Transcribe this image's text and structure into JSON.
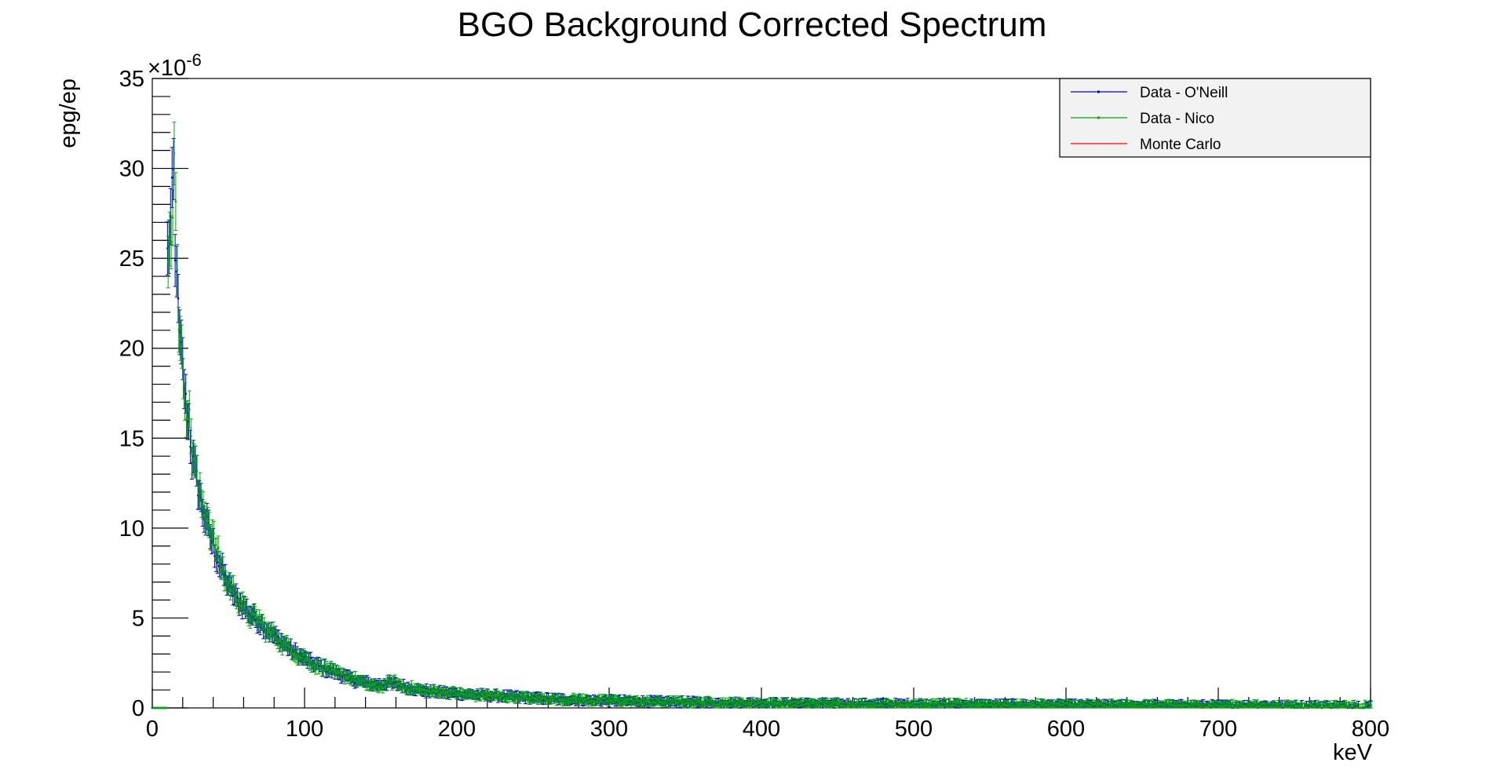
{
  "chart_data": {
    "type": "scatter",
    "title": "BGO Background Corrected Spectrum",
    "xlabel": "keV",
    "ylabel": "epg/ep",
    "y_multiplier_label": "×10",
    "y_multiplier_exponent": "-6",
    "xlim": [
      0,
      800
    ],
    "ylim": [
      0,
      35
    ],
    "x_ticks": [
      0,
      100,
      200,
      300,
      400,
      500,
      600,
      700,
      800
    ],
    "y_ticks": [
      0,
      5,
      10,
      15,
      20,
      25,
      30,
      35
    ],
    "x_tick_labels": [
      "0",
      "100",
      "200",
      "300",
      "400",
      "500",
      "600",
      "700",
      "800"
    ],
    "y_tick_labels": [
      "0",
      "5",
      "10",
      "15",
      "20",
      "25",
      "30",
      "35"
    ],
    "grid": false,
    "legend_position": "top-right",
    "errors": "vertical error bars on each point, roughly 5% of value plus 0.2e-6",
    "legend": [
      {
        "label": "Data - O'Neill",
        "color": "#0000cc",
        "marker": "dot"
      },
      {
        "label": "Data - Nico",
        "color": "#00aa00",
        "marker": "dot"
      },
      {
        "label": "Monte Carlo",
        "color": "#ff0000",
        "marker": "none"
      }
    ],
    "series": [
      {
        "name": "Data - O'Neill",
        "color": "#0000cc",
        "points": [
          [
            0,
            0
          ],
          [
            5,
            0
          ],
          [
            10,
            25.2
          ],
          [
            12,
            27.0
          ],
          [
            14,
            29.5
          ],
          [
            15,
            24.5
          ],
          [
            16,
            25.0
          ],
          [
            17,
            22.0
          ],
          [
            18,
            20.5
          ],
          [
            20,
            19.0
          ],
          [
            22,
            17.0
          ],
          [
            24,
            15.8
          ],
          [
            26,
            14.0
          ],
          [
            28,
            13.2
          ],
          [
            30,
            12.3
          ],
          [
            33,
            11.0
          ],
          [
            36,
            10.2
          ],
          [
            40,
            9.0
          ],
          [
            44,
            8.0
          ],
          [
            48,
            7.2
          ],
          [
            52,
            6.5
          ],
          [
            56,
            6.0
          ],
          [
            60,
            5.6
          ],
          [
            65,
            5.2
          ],
          [
            70,
            4.8
          ],
          [
            75,
            4.4
          ],
          [
            80,
            4.0
          ],
          [
            85,
            3.7
          ],
          [
            90,
            3.3
          ],
          [
            95,
            3.0
          ],
          [
            100,
            2.7
          ],
          [
            105,
            2.5
          ],
          [
            110,
            2.3
          ],
          [
            115,
            2.1
          ],
          [
            120,
            2.0
          ],
          [
            125,
            1.8
          ],
          [
            130,
            1.6
          ],
          [
            135,
            1.5
          ],
          [
            140,
            1.4
          ],
          [
            145,
            1.3
          ],
          [
            150,
            1.3
          ],
          [
            155,
            1.4
          ],
          [
            160,
            1.3
          ],
          [
            165,
            1.2
          ],
          [
            170,
            1.1
          ],
          [
            175,
            1.0
          ],
          [
            180,
            0.95
          ],
          [
            190,
            0.85
          ],
          [
            200,
            0.8
          ],
          [
            210,
            0.75
          ],
          [
            220,
            0.7
          ],
          [
            230,
            0.65
          ],
          [
            240,
            0.6
          ],
          [
            250,
            0.55
          ],
          [
            260,
            0.5
          ],
          [
            270,
            0.47
          ],
          [
            280,
            0.45
          ],
          [
            290,
            0.42
          ],
          [
            300,
            0.4
          ],
          [
            320,
            0.36
          ],
          [
            340,
            0.33
          ],
          [
            360,
            0.3
          ],
          [
            380,
            0.28
          ],
          [
            400,
            0.26
          ],
          [
            420,
            0.24
          ],
          [
            440,
            0.23
          ],
          [
            460,
            0.22
          ],
          [
            480,
            0.21
          ],
          [
            500,
            0.2
          ],
          [
            530,
            0.19
          ],
          [
            560,
            0.18
          ],
          [
            590,
            0.17
          ],
          [
            620,
            0.16
          ],
          [
            650,
            0.15
          ],
          [
            680,
            0.14
          ],
          [
            710,
            0.13
          ],
          [
            740,
            0.12
          ],
          [
            770,
            0.11
          ],
          [
            800,
            0.1
          ]
        ]
      },
      {
        "name": "Data - Nico",
        "color": "#00aa00",
        "points": [
          [
            0,
            0
          ],
          [
            5,
            0
          ],
          [
            10,
            24.8
          ],
          [
            12,
            26.5
          ],
          [
            14,
            30.2
          ],
          [
            15,
            29.0
          ],
          [
            16,
            24.8
          ],
          [
            17,
            21.8
          ],
          [
            18,
            20.0
          ],
          [
            20,
            18.7
          ],
          [
            22,
            16.8
          ],
          [
            24,
            16.0
          ],
          [
            26,
            14.3
          ],
          [
            28,
            13.5
          ],
          [
            30,
            12.0
          ],
          [
            33,
            11.2
          ],
          [
            36,
            10.5
          ],
          [
            40,
            9.3
          ],
          [
            44,
            8.2
          ],
          [
            48,
            7.0
          ],
          [
            52,
            6.7
          ],
          [
            56,
            6.1
          ],
          [
            60,
            5.5
          ],
          [
            65,
            5.0
          ],
          [
            70,
            4.9
          ],
          [
            75,
            4.2
          ],
          [
            80,
            4.1
          ],
          [
            85,
            3.5
          ],
          [
            90,
            3.4
          ],
          [
            95,
            2.9
          ],
          [
            100,
            2.8
          ],
          [
            105,
            2.4
          ],
          [
            110,
            2.3
          ],
          [
            115,
            2.2
          ],
          [
            120,
            1.9
          ],
          [
            125,
            1.8
          ],
          [
            130,
            1.7
          ],
          [
            135,
            1.5
          ],
          [
            140,
            1.3
          ],
          [
            145,
            1.2
          ],
          [
            150,
            1.2
          ],
          [
            155,
            1.4
          ],
          [
            160,
            1.4
          ],
          [
            165,
            1.1
          ],
          [
            170,
            1.1
          ],
          [
            175,
            1.0
          ],
          [
            180,
            0.9
          ],
          [
            190,
            0.9
          ],
          [
            200,
            0.8
          ],
          [
            210,
            0.7
          ],
          [
            220,
            0.7
          ],
          [
            230,
            0.6
          ],
          [
            240,
            0.62
          ],
          [
            250,
            0.5
          ],
          [
            260,
            0.52
          ],
          [
            270,
            0.45
          ],
          [
            280,
            0.47
          ],
          [
            290,
            0.4
          ],
          [
            300,
            0.42
          ],
          [
            320,
            0.35
          ],
          [
            340,
            0.34
          ],
          [
            360,
            0.31
          ],
          [
            380,
            0.27
          ],
          [
            400,
            0.27
          ],
          [
            420,
            0.23
          ],
          [
            440,
            0.24
          ],
          [
            460,
            0.21
          ],
          [
            480,
            0.22
          ],
          [
            500,
            0.19
          ],
          [
            530,
            0.2
          ],
          [
            560,
            0.17
          ],
          [
            590,
            0.18
          ],
          [
            620,
            0.15
          ],
          [
            650,
            0.16
          ],
          [
            680,
            0.13
          ],
          [
            710,
            0.14
          ],
          [
            740,
            0.11
          ],
          [
            770,
            0.12
          ],
          [
            800,
            0.1
          ]
        ]
      },
      {
        "name": "Monte Carlo",
        "color": "#ff0000",
        "points": []
      }
    ]
  }
}
